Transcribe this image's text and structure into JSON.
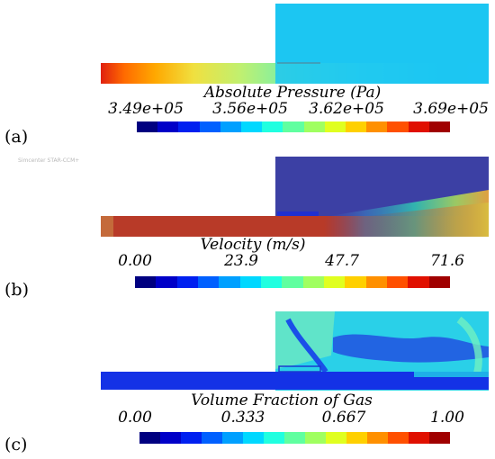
{
  "panels": [
    {
      "label": "(a)",
      "colorbar_title": "Absolute Pressure (Pa)",
      "ticks": [
        "3.49e+05",
        "3.56e+05",
        "3.62e+05",
        "3.69e+05"
      ]
    },
    {
      "label": "(b)",
      "colorbar_title": "Velocity (m/s)",
      "ticks": [
        "0.00",
        "23.9",
        "47.7",
        "71.6"
      ]
    },
    {
      "label": "(c)",
      "colorbar_title": "Volume Fraction of Gas",
      "ticks": [
        "0.00",
        "0.333",
        "0.667",
        "1.00"
      ]
    }
  ],
  "watermark": "Simcenter STAR-CCM+",
  "colormap": [
    "#000080",
    "#0000c8",
    "#0020f0",
    "#0060ff",
    "#00a0ff",
    "#00d8ff",
    "#20ffe0",
    "#60ffa0",
    "#a0ff60",
    "#e0ff20",
    "#ffd000",
    "#ff9000",
    "#ff5000",
    "#e01000",
    "#a00000"
  ]
}
